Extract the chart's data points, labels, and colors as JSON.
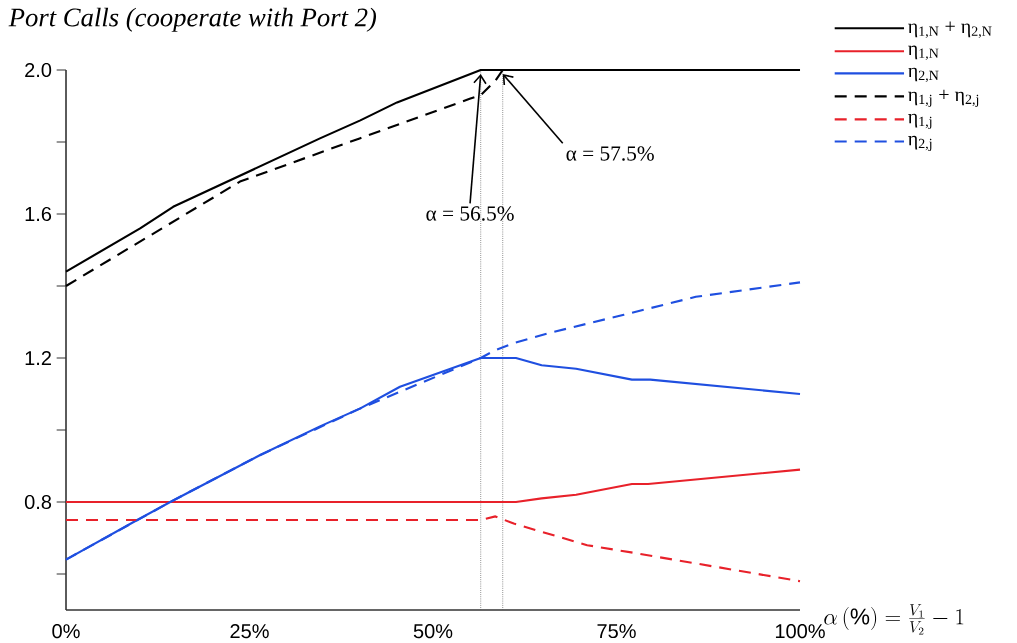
{
  "chart_data": {
    "type": "line",
    "title": "Port  Calls (cooperate with Port 2)",
    "xlabel": "\\alpha\\left(\\%\\right)=\\frac{V_1}{V_2}-1",
    "xlim": [
      0,
      100
    ],
    "ylim": [
      0.5,
      2.0
    ],
    "xticks": [
      {
        "value": 0,
        "label": "0%"
      },
      {
        "value": 25,
        "label": "25%"
      },
      {
        "value": 50,
        "label": "50%"
      },
      {
        "value": 75,
        "label": "75%"
      },
      {
        "value": 100,
        "label": "100%"
      }
    ],
    "yticks": [
      {
        "value": 0.6,
        "label": null
      },
      0.8,
      {
        "value": 1.0,
        "label": null
      },
      1.2,
      {
        "value": 1.4,
        "label": null
      },
      1.6,
      {
        "value": 1.8,
        "label": null
      },
      {
        "value": 2.0,
        "label": "2.0"
      }
    ],
    "legend": "top right",
    "grid": false,
    "marker": "none",
    "series": [
      {
        "name": "η$_{1,N}$ + η$_{2,N}$",
        "color": "#000000",
        "line_style": "solid",
        "x": [
          0,
          10.1,
          14.6,
          34.6,
          40.1,
          45.1,
          56.5,
          100
        ],
        "values": [
          1.44,
          1.56,
          1.62,
          1.81,
          1.86,
          1.91,
          2.0,
          2.0
        ]
      },
      {
        "name": "η$_{1,N}$",
        "color": "#e8212a",
        "line_style": "solid",
        "x": [
          0,
          61.3,
          64.8,
          69.5,
          77.1,
          79.3,
          100
        ],
        "values": [
          0.8,
          0.8,
          0.81,
          0.82,
          0.85,
          0.85,
          0.89
        ]
      },
      {
        "name": "η$_{2,N}$",
        "color": "#1f4fe0",
        "line_style": "solid",
        "x": [
          0,
          9.7,
          14.2,
          26.4,
          34.6,
          40.1,
          45.5,
          56.5,
          61.3,
          64.8,
          69.5,
          77.1,
          79.6,
          100
        ],
        "values": [
          0.64,
          0.75,
          0.8,
          0.93,
          1.01,
          1.06,
          1.12,
          1.2,
          1.2,
          1.18,
          1.17,
          1.14,
          1.14,
          1.1
        ]
      },
      {
        "name": "η$_{1,j}$ + η$_{2,j}$",
        "color": "#000000",
        "line_style": "dashed",
        "x": [
          0,
          23.7,
          40,
          55,
          56.5,
          58.5,
          59.5,
          100
        ],
        "values": [
          1.4,
          1.69,
          1.81,
          1.92,
          1.93,
          1.97,
          2.0,
          2.0
        ]
      },
      {
        "name": "η$_{1,j}$",
        "color": "#e8212a",
        "line_style": "dashed",
        "x": [
          0,
          56.5,
          58.5,
          61,
          71,
          77,
          100
        ],
        "values": [
          0.75,
          0.75,
          0.76,
          0.74,
          0.68,
          0.66,
          0.58
        ]
      },
      {
        "name": "η$_{2,j}$",
        "color": "#1f4fe0",
        "line_style": "dashed",
        "x": [
          0,
          14.2,
          26.4,
          40.1,
          56.5,
          58.3,
          60.8,
          65.9,
          76,
          85.8,
          100
        ],
        "values": [
          0.64,
          0.8,
          0.93,
          1.06,
          1.2,
          1.22,
          1.24,
          1.27,
          1.32,
          1.37,
          1.41
        ]
      }
    ],
    "ref_lines": [
      {
        "axis": "x",
        "value": 56.5,
        "color": "#555555",
        "line_style": "dotted"
      },
      {
        "axis": "x",
        "value": 59.5,
        "color": "#555555",
        "line_style": "dotted"
      }
    ],
    "annotations": [
      {
        "text": "α = 56.5%",
        "x": 56.5,
        "y": 2.0
      },
      {
        "text": "α = 57.5%",
        "x": 59.5,
        "y": 2.0
      }
    ]
  }
}
